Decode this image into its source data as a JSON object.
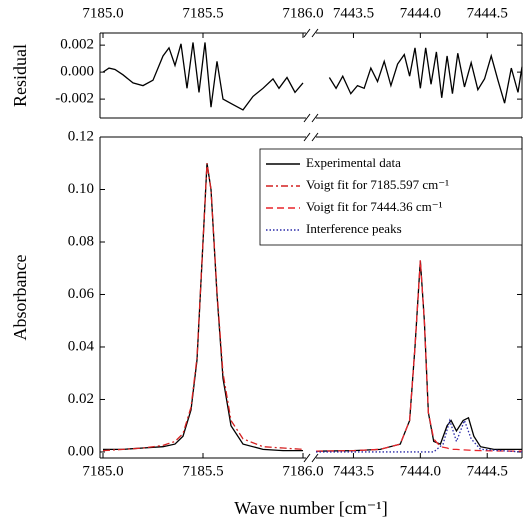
{
  "chart_data": [
    {
      "type": "line",
      "ylabel": "Residual",
      "xtick_side": "top",
      "x_segments": [
        {
          "xlim": [
            7184.985,
            7186.015
          ],
          "xticks": [
            {
              "value": 7185.0,
              "label": "7185.0"
            },
            7185.5,
            {
              "value": 7186.0,
              "label": "7186.0"
            }
          ]
        },
        {
          "xlim": [
            7443.22,
            7444.76
          ],
          "xticks": [
            7443.5,
            {
              "value": 7444.0,
              "label": "7444.0"
            },
            7444.5
          ]
        }
      ],
      "ylim": [
        -0.0034,
        0.0029
      ],
      "yticks": [
        -0.002,
        {
          "value": 0,
          "label": "0.000"
        },
        0.002
      ],
      "series": [
        {
          "color": "#000000",
          "dash": "solid",
          "x": [
            7185.0,
            7185.03,
            7185.06,
            7185.1,
            7185.15,
            7185.2,
            7185.25,
            7185.3,
            7185.33,
            7185.36,
            7185.39,
            7185.42,
            7185.45,
            7185.48,
            7185.51,
            7185.54,
            7185.57,
            7185.6,
            7185.65,
            7185.7,
            7185.75,
            7185.8,
            7185.85,
            7185.88,
            7185.92,
            7185.96,
            7186.0,
            null,
            7443.32,
            7443.37,
            7443.42,
            7443.48,
            7443.53,
            7443.58,
            7443.63,
            7443.68,
            7443.73,
            7443.78,
            7443.83,
            7443.88,
            7443.92,
            7443.96,
            7444.0,
            7444.04,
            7444.08,
            7444.12,
            7444.16,
            7444.2,
            7444.24,
            7444.28,
            7444.33,
            7444.38,
            7444.43,
            7444.48,
            7444.53,
            7444.58,
            7444.63,
            7444.68,
            7444.73,
            7444.76
          ],
          "values": [
            0.0,
            0.0003,
            0.0002,
            -0.0002,
            -0.0008,
            -0.001,
            -0.0006,
            0.0012,
            0.0018,
            0.0005,
            0.0021,
            -0.0012,
            0.0022,
            -0.0015,
            0.0022,
            -0.0026,
            0.0008,
            -0.002,
            -0.0024,
            -0.0028,
            -0.0018,
            -0.0012,
            -0.0005,
            -0.0012,
            -0.0004,
            -0.0015,
            -0.0008,
            null,
            -0.0004,
            -0.0012,
            -0.0003,
            -0.0016,
            -0.001,
            -0.0012,
            0.0003,
            -0.0007,
            0.0008,
            -0.001,
            0.0006,
            0.0013,
            -0.0003,
            0.0018,
            -0.0012,
            0.0018,
            -0.0009,
            0.0015,
            -0.0019,
            0.0012,
            -0.0016,
            0.0014,
            -0.0011,
            0.0007,
            -0.0013,
            -0.0005,
            0.0012,
            -0.0006,
            -0.0023,
            0.0003,
            -0.0015,
            0.0004
          ]
        }
      ]
    },
    {
      "type": "line",
      "ylabel": "Absorbance",
      "xlabel": "Wave number [cm⁻¹]",
      "xtick_side": "bottom",
      "x_segments": [
        {
          "xlim": [
            7184.985,
            7186.015
          ],
          "xticks": [
            {
              "value": 7185.0,
              "label": "7185.0"
            },
            7185.5,
            {
              "value": 7186.0,
              "label": "7186.0"
            }
          ]
        },
        {
          "xlim": [
            7443.22,
            7444.76
          ],
          "xticks": [
            7443.5,
            {
              "value": 7444.0,
              "label": "7444.0"
            },
            7444.5
          ]
        }
      ],
      "ylim": [
        -0.0023,
        0.12
      ],
      "yticks": [
        {
          "value": 0,
          "label": "0.00"
        },
        0.02,
        0.04,
        0.06,
        0.08,
        {
          "value": 0.1,
          "label": "0.10"
        },
        0.12
      ],
      "legend": "upper right",
      "series": [
        {
          "name": "Experimental data",
          "color": "#000000",
          "dash": "solid",
          "x": [
            7185.0,
            7185.1,
            7185.2,
            7185.3,
            7185.36,
            7185.4,
            7185.44,
            7185.47,
            7185.5,
            7185.52,
            7185.54,
            7185.57,
            7185.6,
            7185.64,
            7185.7,
            7185.8,
            7185.9,
            7186.0,
            null,
            7443.22,
            7443.5,
            7443.7,
            7443.85,
            7443.92,
            7443.96,
            7444.0,
            7444.03,
            7444.06,
            7444.1,
            7444.15,
            7444.2,
            7444.23,
            7444.27,
            7444.32,
            7444.36,
            7444.4,
            7444.45,
            7444.55,
            7444.76
          ],
          "values": [
            0.001,
            0.001,
            0.0015,
            0.002,
            0.003,
            0.006,
            0.016,
            0.035,
            0.08,
            0.11,
            0.1,
            0.06,
            0.028,
            0.01,
            0.003,
            0.001,
            0.0005,
            0.0005,
            null,
            0.0003,
            0.0005,
            0.001,
            0.003,
            0.012,
            0.04,
            0.073,
            0.05,
            0.015,
            0.004,
            0.003,
            0.01,
            0.012,
            0.008,
            0.012,
            0.013,
            0.006,
            0.002,
            0.001,
            0.001
          ]
        },
        {
          "name": "Voigt fit for 7185.597 cm⁻¹",
          "color": "#d42020",
          "dash": "dashdot",
          "x": [
            7185.0,
            7185.1,
            7185.2,
            7185.3,
            7185.36,
            7185.4,
            7185.44,
            7185.47,
            7185.5,
            7185.52,
            7185.54,
            7185.57,
            7185.6,
            7185.64,
            7185.7,
            7185.8,
            7185.9,
            7186.0
          ],
          "values": [
            0.0005,
            0.001,
            0.0015,
            0.0025,
            0.004,
            0.007,
            0.017,
            0.036,
            0.08,
            0.11,
            0.1,
            0.061,
            0.03,
            0.012,
            0.005,
            0.002,
            0.0015,
            0.001
          ]
        },
        {
          "name": "Voigt fit for 7444.36 cm⁻¹",
          "color": "#e8242a",
          "dash": "dash",
          "x": [
            7443.22,
            7443.5,
            7443.7,
            7443.85,
            7443.92,
            7443.96,
            7444.0,
            7444.03,
            7444.06,
            7444.1,
            7444.15,
            7444.2,
            7444.23,
            7444.27,
            7444.32,
            7444.36,
            7444.4,
            7444.45,
            7444.55,
            7444.76
          ],
          "values": [
            0.0003,
            0.0005,
            0.001,
            0.003,
            0.012,
            0.04,
            0.073,
            0.05,
            0.015,
            0.005,
            0.002,
            0.0015,
            0.001,
            0.001,
            0.0008,
            0.0007,
            0.0006,
            0.0005,
            0.0004,
            0.0003
          ]
        },
        {
          "name": "Interference peaks",
          "color": "#2a2aa8",
          "dash": "dot",
          "x": [
            7443.22,
            7444.1,
            7444.17,
            7444.22,
            7444.27,
            7444.33,
            7444.38,
            7444.45,
            7444.76
          ],
          "values": [
            0,
            0,
            0.003,
            0.012,
            0.004,
            0.012,
            0.005,
            0.001,
            0
          ]
        }
      ]
    }
  ]
}
